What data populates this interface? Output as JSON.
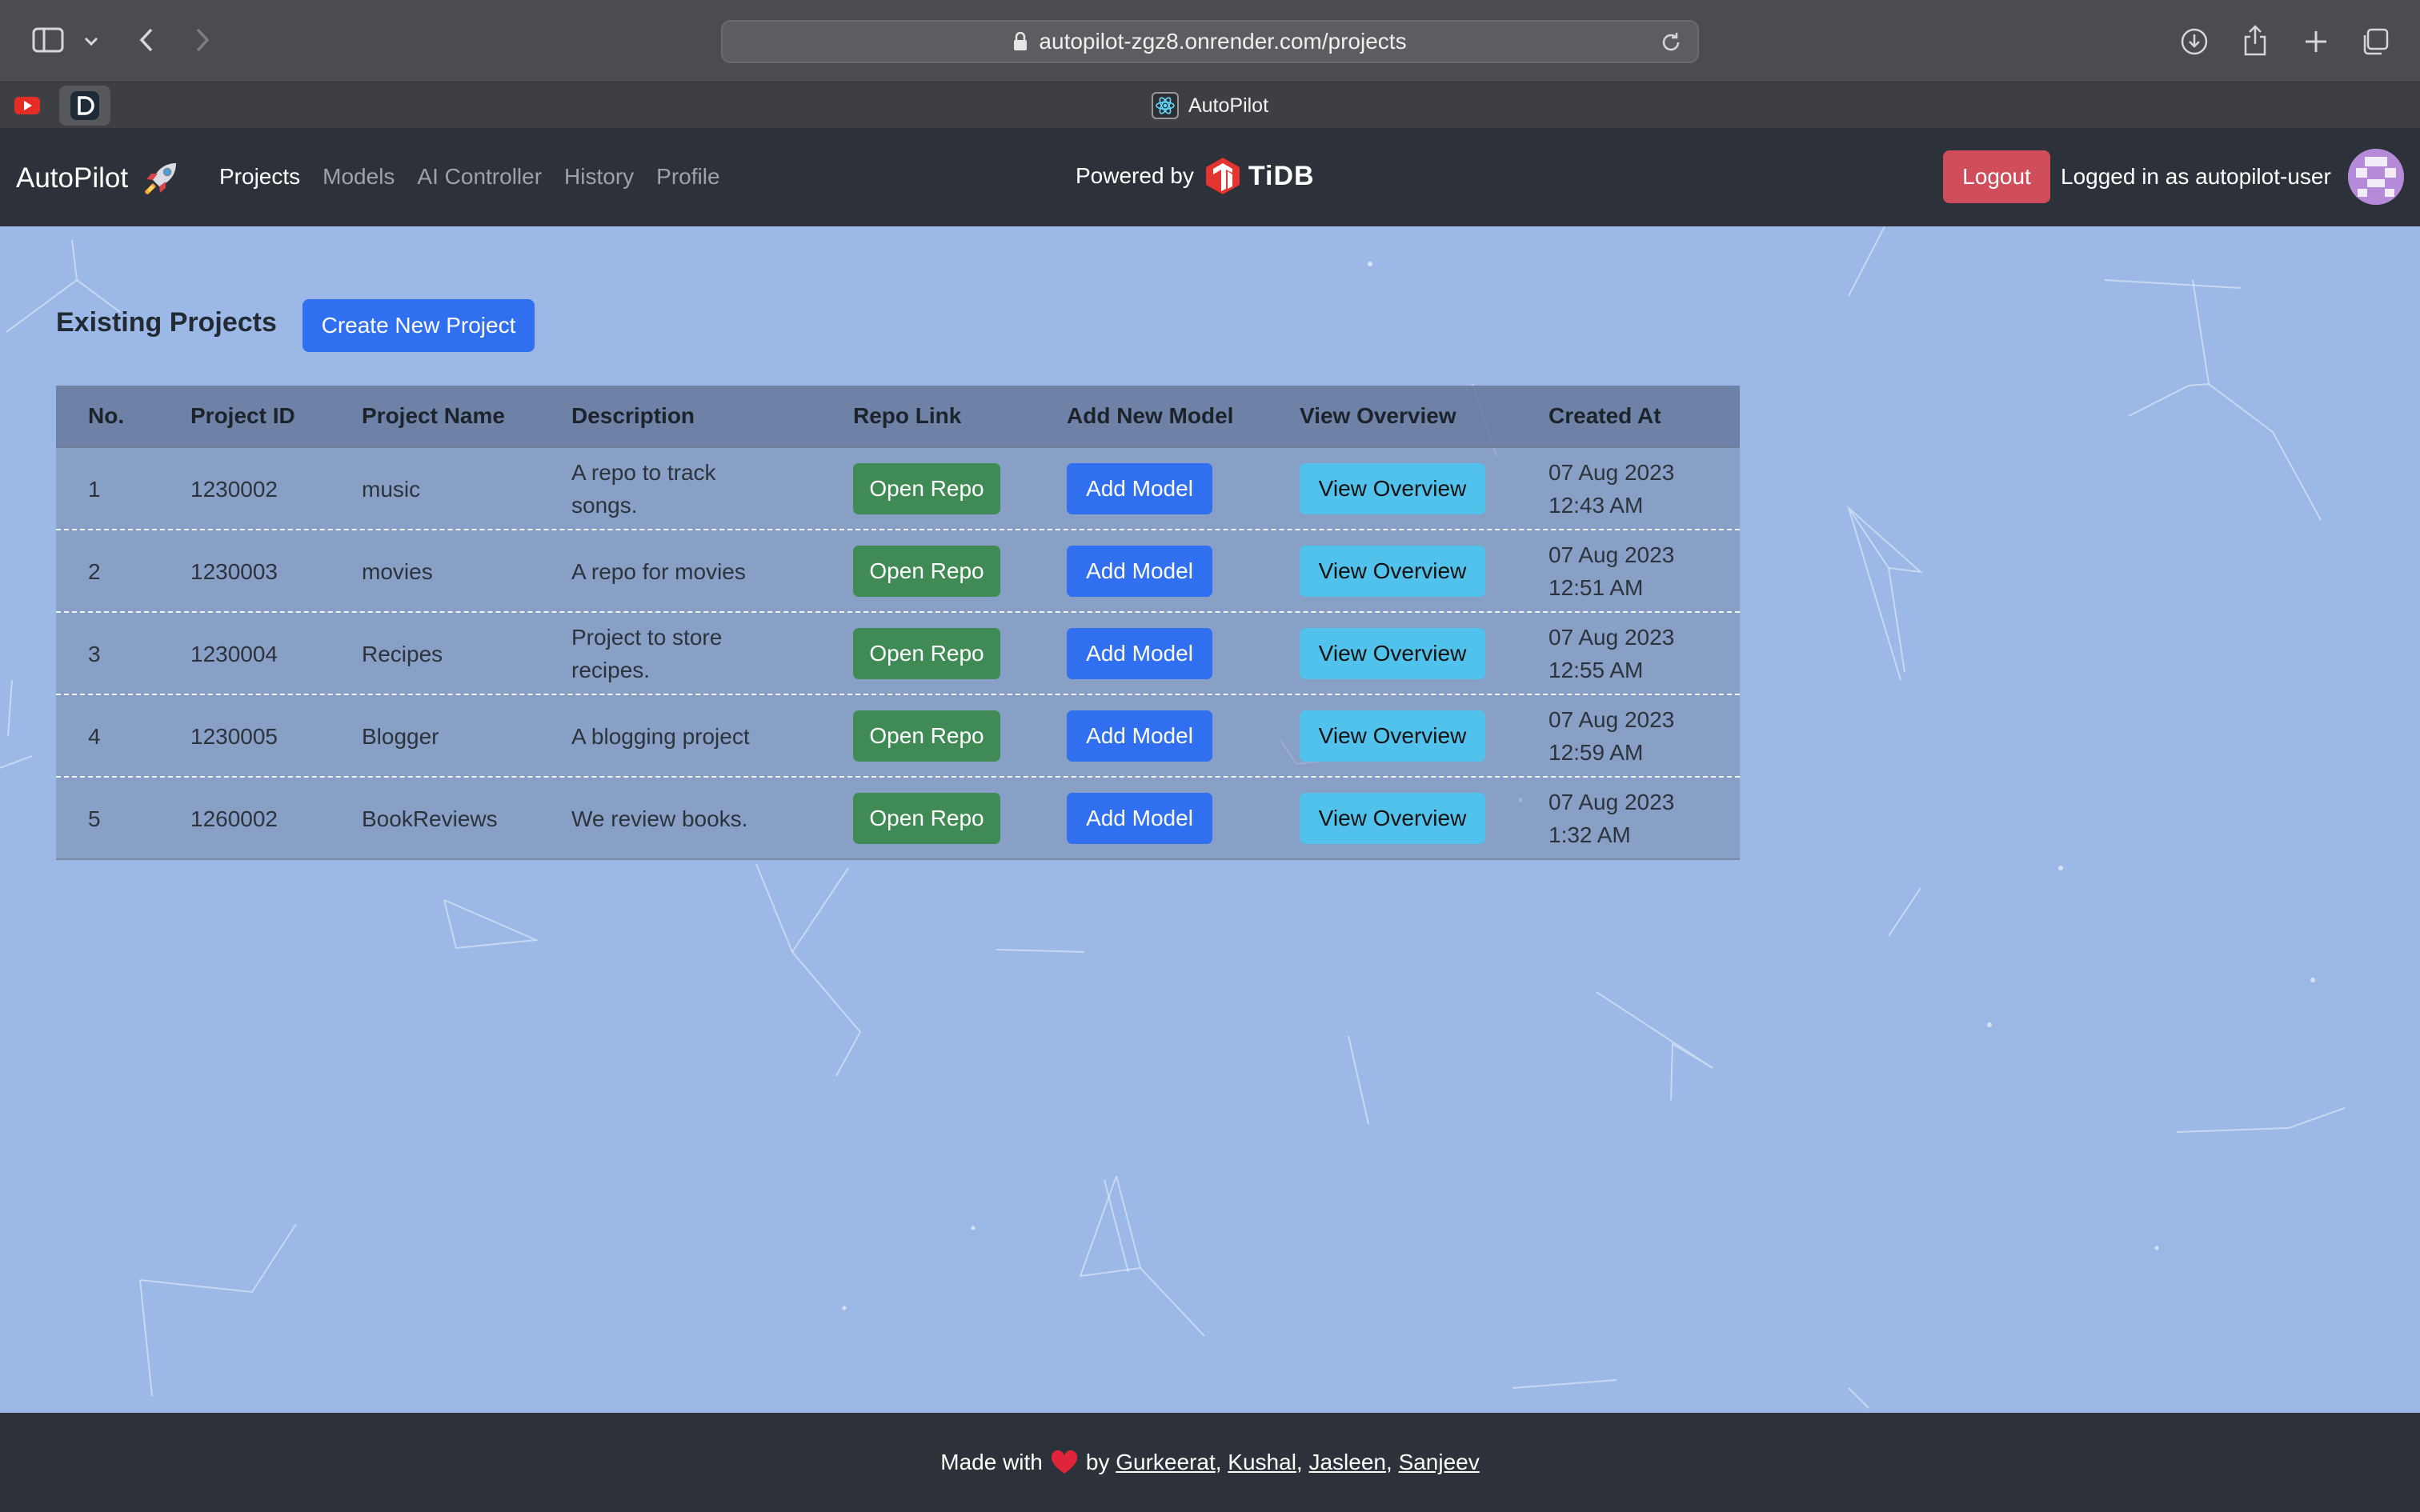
{
  "browser": {
    "url": "autopilot-zgz8.onrender.com/projects",
    "tab_title": "AutoPilot"
  },
  "navbar": {
    "brand": "AutoPilot",
    "links": [
      {
        "label": "Projects",
        "active": true
      },
      {
        "label": "Models"
      },
      {
        "label": "AI Controller"
      },
      {
        "label": "History"
      },
      {
        "label": "Profile"
      }
    ],
    "powered_by": "Powered by",
    "partner": "TiDB",
    "logout_label": "Logout",
    "logged_in_text": "Logged in as autopilot-user"
  },
  "main": {
    "title": "Existing Projects",
    "create_label": "Create New Project",
    "columns": [
      "No.",
      "Project ID",
      "Project Name",
      "Description",
      "Repo Link",
      "Add New Model",
      "View Overview",
      "Created At"
    ],
    "rows": [
      {
        "no": "1",
        "id": "1230002",
        "name": "music",
        "desc": [
          "A repo to track",
          "songs."
        ],
        "created": [
          "07 Aug 2023",
          "12:43 AM"
        ]
      },
      {
        "no": "2",
        "id": "1230003",
        "name": "movies",
        "desc": [
          "A repo for movies"
        ],
        "created": [
          "07 Aug 2023",
          "12:51 AM"
        ]
      },
      {
        "no": "3",
        "id": "1230004",
        "name": "Recipes",
        "desc": [
          "Project to store",
          "recipes."
        ],
        "created": [
          "07 Aug 2023",
          "12:55 AM"
        ]
      },
      {
        "no": "4",
        "id": "1230005",
        "name": "Blogger",
        "desc": [
          "A blogging project"
        ],
        "created": [
          "07 Aug 2023",
          "12:59 AM"
        ]
      },
      {
        "no": "5",
        "id": "1260002",
        "name": "BookReviews",
        "desc": [
          "We review books."
        ],
        "created": [
          "07 Aug 2023",
          "1:32 AM"
        ]
      }
    ],
    "repo_label": "Open Repo",
    "model_label": "Add Model",
    "view_label": "View Overview"
  },
  "footer": {
    "made_with": "Made with",
    "by": "by",
    "authors": [
      "Gurkeerat",
      "Kushal",
      "Jasleen",
      "Sanjeev"
    ]
  },
  "colors": {
    "background": "#9cb8e6",
    "navbar": "#2d3139",
    "primary": "#2f6ff0",
    "success": "#3f8a55",
    "info": "#50c2ec",
    "danger": "#d04e5c"
  }
}
